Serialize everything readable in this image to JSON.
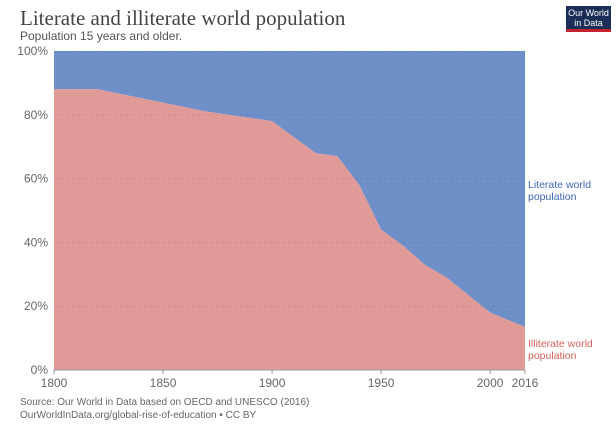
{
  "header": {
    "title": "Literate and illiterate world population",
    "subtitle": "Population 15 years and older.",
    "logo": "Our World in Data"
  },
  "footer": {
    "source": "Source: Our World in Data based on OECD and UNESCO (2016)",
    "link": "OurWorldInData.org/global-rise-of-education • CC BY"
  },
  "chart_data": {
    "type": "area",
    "stacked": true,
    "x": [
      1800,
      1820,
      1870,
      1900,
      1920,
      1930,
      1940,
      1950,
      1960,
      1970,
      1980,
      1990,
      2000,
      2016
    ],
    "series": [
      {
        "name": "Illiterate world population",
        "color": "#e09a98",
        "label_color": "#d2605a",
        "values": [
          88,
          88,
          81,
          78,
          68,
          67,
          58,
          44,
          39,
          33,
          29,
          23.5,
          18,
          13.5
        ]
      },
      {
        "name": "Literate world population",
        "color": "#6e8fc7",
        "label_color": "#3d67b0",
        "values": [
          12,
          12,
          19,
          22,
          32,
          33,
          42,
          56,
          61,
          67,
          71,
          76.5,
          82,
          86.5
        ]
      }
    ],
    "xlim": [
      1800,
      2016
    ],
    "ylim": [
      0,
      100
    ],
    "xticks": [
      "1800",
      "1850",
      "1900",
      "1950",
      "2000",
      "2016"
    ],
    "yticks": [
      "0%",
      "20%",
      "40%",
      "60%",
      "80%",
      "100%"
    ],
    "grid": true
  }
}
